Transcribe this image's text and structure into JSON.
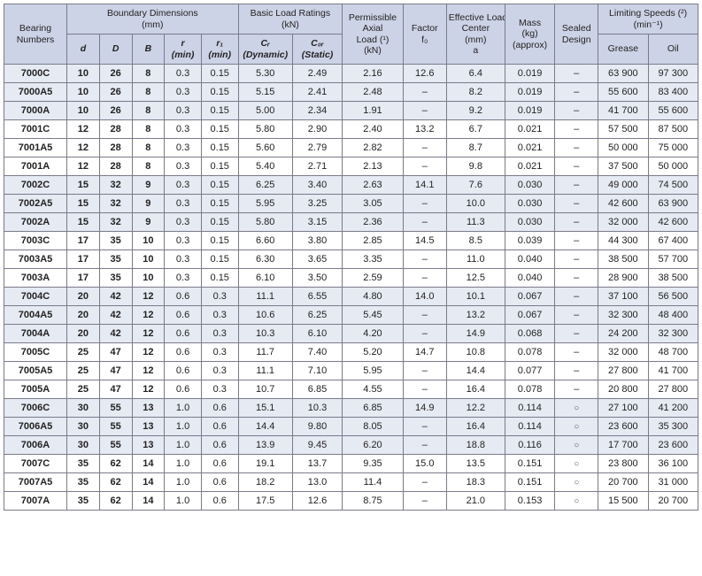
{
  "headers": {
    "top": [
      {
        "label": "Bearing\nNumbers",
        "rowspan": 2,
        "colspan": 1
      },
      {
        "label": "Boundary Dimensions\n(mm)",
        "rowspan": 1,
        "colspan": 5
      },
      {
        "label": "Basic Load Ratings\n(kN)",
        "rowspan": 1,
        "colspan": 2
      },
      {
        "label": "Permissible\nAxial\nLoad (¹)\n(kN)",
        "rowspan": 2,
        "colspan": 1
      },
      {
        "label": "Factor\nf₀",
        "rowspan": 2,
        "colspan": 1
      },
      {
        "label": "Effective Load\nCenter\n(mm)\na",
        "rowspan": 2,
        "colspan": 1
      },
      {
        "label": "Mass\n(kg)\n(approx)",
        "rowspan": 2,
        "colspan": 1
      },
      {
        "label": "Sealed\nDesign",
        "rowspan": 2,
        "colspan": 1
      },
      {
        "label": "Limiting Speeds (²)\n(min⁻¹)",
        "rowspan": 1,
        "colspan": 2
      }
    ],
    "sub": [
      {
        "label": "d",
        "italic": true
      },
      {
        "label": "D",
        "italic": true
      },
      {
        "label": "B",
        "italic": true
      },
      {
        "label": "r\n(min)",
        "italic": true
      },
      {
        "label": "r₁\n(min)",
        "italic": true
      },
      {
        "label": "Cᵣ\n(Dynamic)",
        "italic": true
      },
      {
        "label": "C₀ᵣ\n(Static)",
        "italic": true
      },
      {
        "label": "Grease",
        "italic": false
      },
      {
        "label": "Oil",
        "italic": false
      }
    ]
  },
  "col_widths": [
    "58",
    "30",
    "30",
    "30",
    "34",
    "34",
    "50",
    "46",
    "56",
    "40",
    "54",
    "46",
    "40",
    "46",
    "46"
  ],
  "groups": [
    {
      "band": true,
      "rows": [
        [
          "7000C",
          "10",
          "26",
          "8",
          "0.3",
          "0.15",
          "5.30",
          "2.49",
          "2.16",
          "12.6",
          "6.4",
          "0.019",
          "–",
          "63 900",
          "97 300"
        ],
        [
          "7000A5",
          "10",
          "26",
          "8",
          "0.3",
          "0.15",
          "5.15",
          "2.41",
          "2.48",
          "–",
          "8.2",
          "0.019",
          "–",
          "55 600",
          "83 400"
        ],
        [
          "7000A",
          "10",
          "26",
          "8",
          "0.3",
          "0.15",
          "5.00",
          "2.34",
          "1.91",
          "–",
          "9.2",
          "0.019",
          "–",
          "41 700",
          "55 600"
        ]
      ]
    },
    {
      "band": false,
      "rows": [
        [
          "7001C",
          "12",
          "28",
          "8",
          "0.3",
          "0.15",
          "5.80",
          "2.90",
          "2.40",
          "13.2",
          "6.7",
          "0.021",
          "–",
          "57 500",
          "87 500"
        ],
        [
          "7001A5",
          "12",
          "28",
          "8",
          "0.3",
          "0.15",
          "5.60",
          "2.79",
          "2.82",
          "–",
          "8.7",
          "0.021",
          "–",
          "50 000",
          "75 000"
        ],
        [
          "7001A",
          "12",
          "28",
          "8",
          "0.3",
          "0.15",
          "5.40",
          "2.71",
          "2.13",
          "–",
          "9.8",
          "0.021",
          "–",
          "37 500",
          "50 000"
        ]
      ]
    },
    {
      "band": true,
      "rows": [
        [
          "7002C",
          "15",
          "32",
          "9",
          "0.3",
          "0.15",
          "6.25",
          "3.40",
          "2.63",
          "14.1",
          "7.6",
          "0.030",
          "–",
          "49 000",
          "74 500"
        ],
        [
          "7002A5",
          "15",
          "32",
          "9",
          "0.3",
          "0.15",
          "5.95",
          "3.25",
          "3.05",
          "–",
          "10.0",
          "0.030",
          "–",
          "42 600",
          "63 900"
        ],
        [
          "7002A",
          "15",
          "32",
          "9",
          "0.3",
          "0.15",
          "5.80",
          "3.15",
          "2.36",
          "–",
          "11.3",
          "0.030",
          "–",
          "32 000",
          "42 600"
        ]
      ]
    },
    {
      "band": false,
      "rows": [
        [
          "7003C",
          "17",
          "35",
          "10",
          "0.3",
          "0.15",
          "6.60",
          "3.80",
          "2.85",
          "14.5",
          "8.5",
          "0.039",
          "–",
          "44 300",
          "67 400"
        ],
        [
          "7003A5",
          "17",
          "35",
          "10",
          "0.3",
          "0.15",
          "6.30",
          "3.65",
          "3.35",
          "–",
          "11.0",
          "0.040",
          "–",
          "38 500",
          "57 700"
        ],
        [
          "7003A",
          "17",
          "35",
          "10",
          "0.3",
          "0.15",
          "6.10",
          "3.50",
          "2.59",
          "–",
          "12.5",
          "0.040",
          "–",
          "28 900",
          "38 500"
        ]
      ]
    },
    {
      "band": true,
      "rows": [
        [
          "7004C",
          "20",
          "42",
          "12",
          "0.6",
          "0.3",
          "11.1",
          "6.55",
          "4.80",
          "14.0",
          "10.1",
          "0.067",
          "–",
          "37 100",
          "56 500"
        ],
        [
          "7004A5",
          "20",
          "42",
          "12",
          "0.6",
          "0.3",
          "10.6",
          "6.25",
          "5.45",
          "–",
          "13.2",
          "0.067",
          "–",
          "32 300",
          "48 400"
        ],
        [
          "7004A",
          "20",
          "42",
          "12",
          "0.6",
          "0.3",
          "10.3",
          "6.10",
          "4.20",
          "–",
          "14.9",
          "0.068",
          "–",
          "24 200",
          "32 300"
        ]
      ]
    },
    {
      "band": false,
      "rows": [
        [
          "7005C",
          "25",
          "47",
          "12",
          "0.6",
          "0.3",
          "11.7",
          "7.40",
          "5.20",
          "14.7",
          "10.8",
          "0.078",
          "–",
          "32 000",
          "48 700"
        ],
        [
          "7005A5",
          "25",
          "47",
          "12",
          "0.6",
          "0.3",
          "11.1",
          "7.10",
          "5.95",
          "–",
          "14.4",
          "0.077",
          "–",
          "27 800",
          "41 700"
        ],
        [
          "7005A",
          "25",
          "47",
          "12",
          "0.6",
          "0.3",
          "10.7",
          "6.85",
          "4.55",
          "–",
          "16.4",
          "0.078",
          "–",
          "20 800",
          "27 800"
        ]
      ]
    },
    {
      "band": true,
      "rows": [
        [
          "7006C",
          "30",
          "55",
          "13",
          "1.0",
          "0.6",
          "15.1",
          "10.3",
          "6.85",
          "14.9",
          "12.2",
          "0.114",
          "○",
          "27 100",
          "41 200"
        ],
        [
          "7006A5",
          "30",
          "55",
          "13",
          "1.0",
          "0.6",
          "14.4",
          "9.80",
          "8.05",
          "–",
          "16.4",
          "0.114",
          "○",
          "23 600",
          "35 300"
        ],
        [
          "7006A",
          "30",
          "55",
          "13",
          "1.0",
          "0.6",
          "13.9",
          "9.45",
          "6.20",
          "–",
          "18.8",
          "0.116",
          "○",
          "17 700",
          "23 600"
        ]
      ]
    },
    {
      "band": false,
      "rows": [
        [
          "7007C",
          "35",
          "62",
          "14",
          "1.0",
          "0.6",
          "19.1",
          "13.7",
          "9.35",
          "15.0",
          "13.5",
          "0.151",
          "○",
          "23 800",
          "36 100"
        ],
        [
          "7007A5",
          "35",
          "62",
          "14",
          "1.0",
          "0.6",
          "18.2",
          "13.0",
          "11.4",
          "–",
          "18.3",
          "0.151",
          "○",
          "20 700",
          "31 000"
        ],
        [
          "7007A",
          "35",
          "62",
          "14",
          "1.0",
          "0.6",
          "17.5",
          "12.6",
          "8.75",
          "–",
          "21.0",
          "0.153",
          "○",
          "15 500",
          "20 700"
        ]
      ]
    }
  ],
  "bold_cols": [
    0,
    1,
    2,
    3
  ]
}
